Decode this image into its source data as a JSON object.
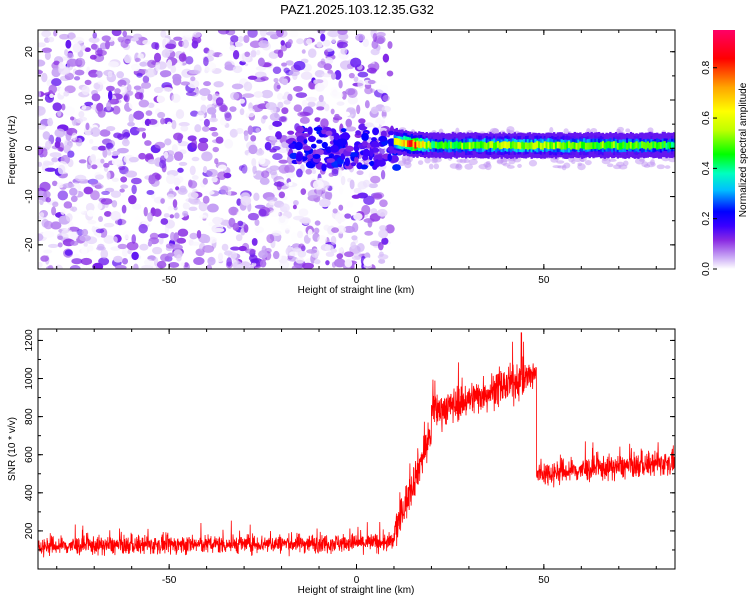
{
  "chart_data": [
    {
      "type": "heatmap",
      "title": "PAZ1.2025.103.12.35.G32",
      "xlabel": "Height of straight line (km)",
      "ylabel": "Frequency (Hz)",
      "xlim": [
        -85,
        85
      ],
      "ylim": [
        -25,
        24.5
      ],
      "xticks": [
        -50,
        0,
        50
      ],
      "yticks": [
        -20,
        -10,
        0,
        10,
        20
      ],
      "colorbar": {
        "label": "Normalized spectral amplitude",
        "range": [
          0,
          0.95
        ],
        "ticks": [
          0.0,
          0.2,
          0.4,
          0.6,
          0.8
        ],
        "colormap": [
          "#ffffff",
          "#c9a8f5",
          "#8a2be2",
          "#3a00ff",
          "#0000ff",
          "#00bfff",
          "#00ffbf",
          "#00ff00",
          "#bfff00",
          "#ffff00",
          "#ffa500",
          "#ff0000",
          "#ff0066"
        ]
      },
      "noise_region": {
        "x": [
          -85,
          9
        ],
        "amplitude": [
          0.0,
          0.15
        ]
      },
      "transition_region": {
        "x": [
          -18,
          12
        ],
        "freq": [
          -4,
          4
        ],
        "amplitude": [
          0.1,
          0.25
        ]
      },
      "signal_band": [
        {
          "x": 10,
          "freq": 1.5,
          "amplitude": 0.55
        },
        {
          "x": 15,
          "freq": 0.8,
          "amplitude": 0.8
        },
        {
          "x": 20,
          "freq": 0.6,
          "amplitude": 0.45
        },
        {
          "x": 40,
          "freq": 0.6,
          "amplitude": 0.55
        },
        {
          "x": 60,
          "freq": 0.6,
          "amplitude": 0.5
        },
        {
          "x": 85,
          "freq": 0.6,
          "amplitude": 0.45
        }
      ]
    },
    {
      "type": "line",
      "xlabel": "Height of straight line (km)",
      "ylabel": "SNR (10 * v/v)",
      "xlim": [
        -85,
        85
      ],
      "ylim": [
        0,
        1260
      ],
      "xticks": [
        -50,
        0,
        50
      ],
      "yticks": [
        200,
        400,
        600,
        800,
        1000,
        1200
      ],
      "color": "#ff0000",
      "segments": [
        {
          "x": [
            -85,
            10
          ],
          "mean": [
            120,
            140
          ],
          "noise": 45
        },
        {
          "x": [
            10,
            20
          ],
          "mean": [
            180,
            720
          ],
          "noise": 90
        },
        {
          "x": [
            20,
            48
          ],
          "mean": [
            820,
            1020
          ],
          "noise": 85
        },
        {
          "x": [
            48,
            85
          ],
          "mean": [
            500,
            560
          ],
          "noise": 60
        }
      ],
      "peak": {
        "x": 44,
        "y": 1240
      }
    }
  ]
}
